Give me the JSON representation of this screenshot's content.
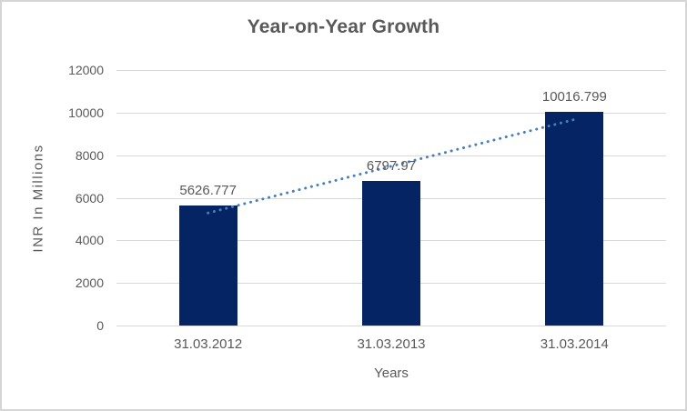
{
  "chart_data": {
    "type": "bar",
    "title": "Year-on-Year Growth",
    "categories": [
      "31.03.2012",
      "31.03.2013",
      "31.03.2014"
    ],
    "values": [
      5626.777,
      6797.97,
      10016.799
    ],
    "data_labels": [
      "5626.777",
      "6797.97",
      "10016.799"
    ],
    "xlabel": "Years",
    "ylabel": "INR In Millions",
    "ylim": [
      0,
      12000
    ],
    "yticks": [
      0,
      2000,
      4000,
      6000,
      8000,
      10000,
      12000
    ],
    "grid": true,
    "legend": "none",
    "trendline": {
      "type": "linear",
      "style": "dotted"
    }
  },
  "colors": {
    "bar": "#042463",
    "trendline": "#4a7ebb",
    "text": "#595959",
    "gridline": "#d9d9d9",
    "frame_border": "#d5d5d5",
    "background": "#ffffff"
  }
}
